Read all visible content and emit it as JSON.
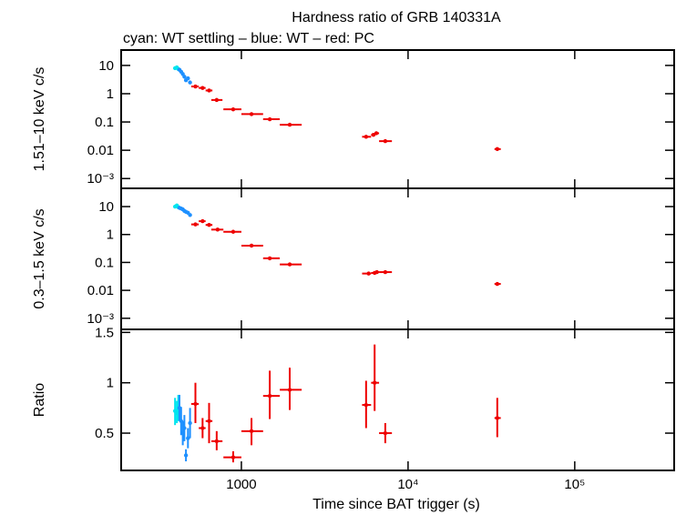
{
  "chart_data": [
    {
      "type": "scatter",
      "title": "Hardness ratio of GRB 140331A",
      "subtitle": "cyan: WT settling – blue: WT – red: PC",
      "ylabel": "1.51–10 keV c/s",
      "xscale": "log",
      "yscale": "log",
      "xlim": [
        190,
        395000
      ],
      "ylim": [
        0.00045,
        35
      ],
      "yticks": [
        10,
        1,
        0.1,
        0.01,
        {
          "value": 0.001,
          "label": "10⁻³"
        }
      ],
      "series": [
        {
          "name": "WT settling",
          "color": "#00e5ee",
          "x": [
            400,
            410,
            418
          ],
          "y": [
            8,
            8.5,
            7.5
          ]
        },
        {
          "name": "WT",
          "color": "#1e90ff",
          "x": [
            425,
            435,
            445,
            455,
            465,
            478,
            492
          ],
          "y": [
            7,
            6,
            5,
            4,
            3,
            3.5,
            2.5
          ]
        },
        {
          "name": "PC",
          "color": "#ee0000",
          "x": [
            530,
            585,
            640,
            711,
            893,
            1150,
            1480,
            1950,
            5600,
            6200,
            6450,
            7300,
            34300
          ],
          "xmin": [
            500,
            555,
            610,
            660,
            780,
            1000,
            1350,
            1700,
            5300,
            6000,
            6300,
            6700,
            33000
          ],
          "xmax": [
            555,
            610,
            670,
            770,
            1000,
            1350,
            1700,
            2300,
            6000,
            6300,
            6700,
            8000,
            36000
          ],
          "y": [
            1.8,
            1.6,
            1.3,
            0.6,
            0.28,
            0.19,
            0.125,
            0.08,
            0.03,
            0.035,
            0.04,
            0.021,
            0.011
          ]
        }
      ]
    },
    {
      "type": "scatter",
      "ylabel": "0.3–1.5 keV c/s",
      "xscale": "log",
      "yscale": "log",
      "xlim": [
        190,
        395000
      ],
      "ylim": [
        0.0004,
        45
      ],
      "yticks": [
        10,
        1,
        0.1,
        0.01,
        {
          "value": 0.001,
          "label": "10⁻³"
        }
      ],
      "series": [
        {
          "name": "WT settling",
          "color": "#00e5ee",
          "x": [
            400,
            410,
            418
          ],
          "y": [
            10,
            11,
            9.5
          ]
        },
        {
          "name": "WT",
          "color": "#1e90ff",
          "x": [
            425,
            435,
            445,
            455,
            465,
            478,
            492
          ],
          "y": [
            9,
            8.5,
            8,
            7,
            6.5,
            6,
            5
          ]
        },
        {
          "name": "PC",
          "color": "#ee0000",
          "x": [
            530,
            585,
            640,
            720,
            893,
            1150,
            1480,
            1950,
            5800,
            6300,
            6500,
            7300,
            34300
          ],
          "xmin": [
            500,
            555,
            610,
            660,
            780,
            1000,
            1350,
            1700,
            5300,
            6000,
            6300,
            6700,
            33000
          ],
          "xmax": [
            555,
            610,
            670,
            780,
            1000,
            1350,
            1700,
            2300,
            6000,
            6300,
            6700,
            8000,
            36000
          ],
          "y": [
            2.3,
            3.0,
            2.2,
            1.5,
            1.25,
            0.4,
            0.14,
            0.085,
            0.04,
            0.042,
            0.045,
            0.045,
            0.017
          ]
        }
      ]
    },
    {
      "type": "scatter",
      "ylabel": "Ratio",
      "xlabel": "Time since BAT trigger (s)",
      "xscale": "log",
      "yscale": "linear",
      "xlim": [
        190,
        395000
      ],
      "ylim": [
        0.13,
        1.53
      ],
      "xticks": [
        1000,
        {
          "value": 10000,
          "label": "10⁴"
        },
        {
          "value": 100000,
          "label": "10⁵"
        }
      ],
      "yticks": [
        0.5,
        1,
        1.5
      ],
      "series": [
        {
          "name": "WT settling",
          "color": "#00e5ee",
          "x": [
            400,
            410,
            418
          ],
          "y": [
            0.72,
            0.7,
            0.75
          ],
          "ymin": [
            0.58,
            0.6,
            0.62
          ],
          "ymax": [
            0.85,
            0.82,
            0.88
          ]
        },
        {
          "name": "WT",
          "color": "#1e90ff",
          "x": [
            425,
            435,
            445,
            455,
            465,
            478,
            492
          ],
          "y": [
            0.75,
            0.62,
            0.5,
            0.55,
            0.28,
            0.45,
            0.6
          ],
          "ymin": [
            0.62,
            0.48,
            0.38,
            0.42,
            0.22,
            0.35,
            0.45
          ],
          "ymax": [
            0.88,
            0.76,
            0.62,
            0.68,
            0.34,
            0.55,
            0.75
          ]
        },
        {
          "name": "PC",
          "color": "#ee0000",
          "x": [
            530,
            585,
            640,
            711,
            893,
            1150,
            1480,
            1950,
            5600,
            6300,
            7300,
            34300
          ],
          "xmin": [
            500,
            555,
            610,
            660,
            780,
            1000,
            1350,
            1700,
            5300,
            6000,
            6700,
            33000
          ],
          "xmax": [
            555,
            610,
            670,
            770,
            1000,
            1350,
            1700,
            2300,
            6000,
            6700,
            8000,
            36000
          ],
          "y": [
            0.79,
            0.55,
            0.62,
            0.42,
            0.26,
            0.52,
            0.87,
            0.93,
            0.78,
            1.0,
            0.5,
            0.65
          ],
          "ymin": [
            0.6,
            0.45,
            0.4,
            0.33,
            0.21,
            0.38,
            0.64,
            0.73,
            0.55,
            0.72,
            0.4,
            0.46
          ],
          "ymax": [
            1.0,
            0.65,
            0.8,
            0.52,
            0.32,
            0.65,
            1.12,
            1.15,
            1.02,
            1.38,
            0.6,
            0.85
          ]
        }
      ]
    }
  ]
}
